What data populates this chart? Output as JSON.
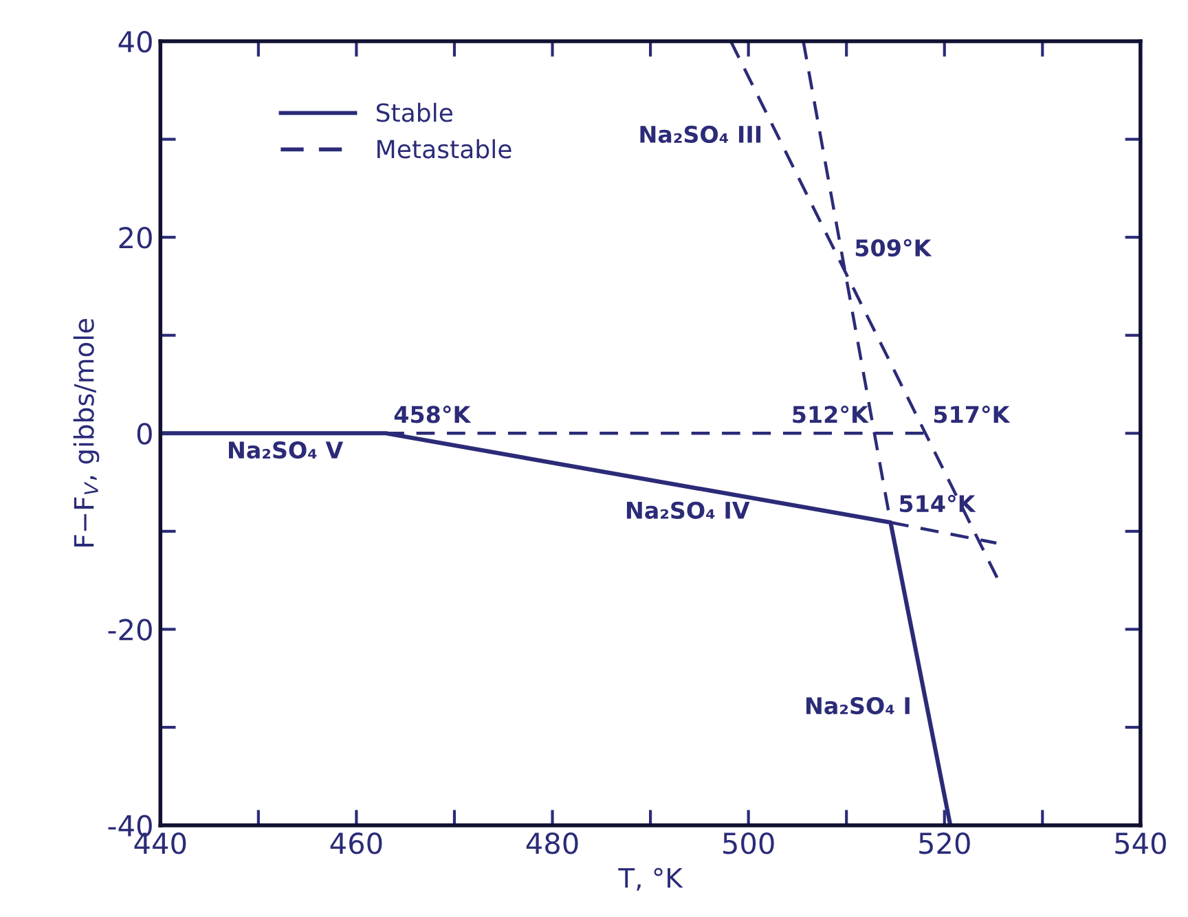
{
  "chart_data": {
    "type": "line",
    "xlabel": "T, °K",
    "ylabel": "F−F$_{V}$, gibbs/mole",
    "xlim": [
      440,
      540
    ],
    "ylim": [
      -40,
      40
    ],
    "xticks": [
      440,
      {
        "value": 450,
        "label": null
      },
      460,
      {
        "value": 470,
        "label": null
      },
      480,
      {
        "value": 490,
        "label": null
      },
      500,
      {
        "value": 510,
        "label": null
      },
      520,
      {
        "value": 530,
        "label": null
      },
      540
    ],
    "yticks": [
      -40,
      {
        "value": -30,
        "label": null
      },
      -20,
      {
        "value": -10,
        "label": null
      },
      0,
      {
        "value": 10,
        "label": null
      },
      20,
      {
        "value": 30,
        "label": null
      },
      40
    ],
    "grid": false,
    "legend": "top left",
    "marker": "none",
    "series": [
      {
        "name": "Stable",
        "color": "#2b2b78",
        "line_style": "solid",
        "x": [
          440,
          463,
          514.5,
          520.6
        ],
        "values": [
          0,
          0,
          -9.1,
          -40
        ]
      },
      {
        "name": "Metastable",
        "color": "#2b2b78",
        "line_style": "dashed",
        "x": [
          463,
          519,
          null,
          514.5,
          525.3,
          null,
          498.2,
          525.7,
          null,
          505.6,
          514.5
        ],
        "values": [
          0,
          0,
          null,
          -9.1,
          -11.2,
          null,
          40,
          -15.4,
          null,
          40,
          -9.1
        ]
      }
    ],
    "annotations": [
      {
        "text": "458°K",
        "x": 463,
        "y": 0
      },
      {
        "text": "509°K",
        "x": 510,
        "y": 17
      },
      {
        "text": "512°K",
        "x": 513,
        "y": 0
      },
      {
        "text": "517°K",
        "x": 518,
        "y": 0
      },
      {
        "text": "514°K",
        "x": 514.5,
        "y": -9.1
      },
      {
        "text": "Na₂SO₄ V",
        "x": 446,
        "y": 0
      },
      {
        "text": "Na₂SO₄ IV",
        "x": 487,
        "y": -4.2
      },
      {
        "text": "Na₂SO₄ III",
        "x": 503,
        "y": 30.3
      },
      {
        "text": "Na₂SO₄ I",
        "x": 518.2,
        "y": -28
      }
    ]
  }
}
